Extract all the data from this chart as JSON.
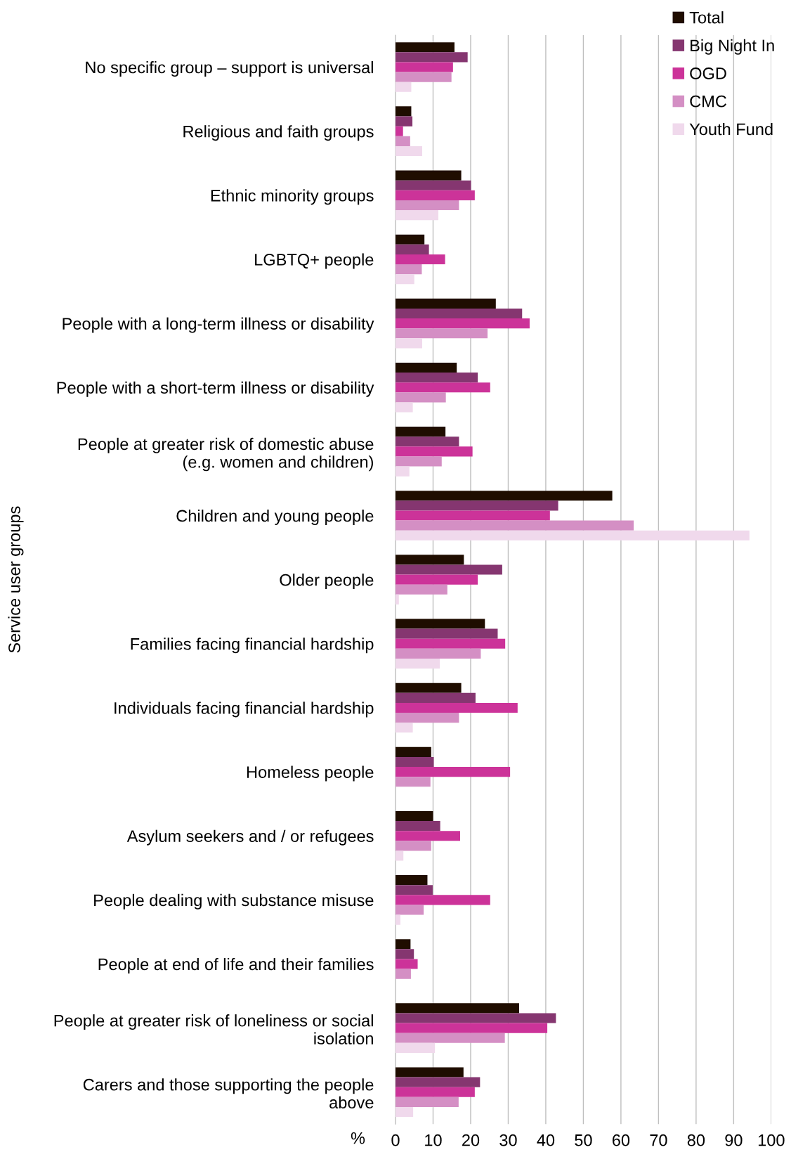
{
  "chart_data": {
    "type": "bar",
    "orientation": "horizontal",
    "xlabel": "%",
    "ylabel": "Service user groups",
    "categories": [
      "No specific group – support is universal",
      "Religious and faith groups",
      "Ethnic minority groups",
      "LGBTQ+ people",
      "People with a long-term illness or disability",
      "People with a short-term illness or disability",
      "People at greater risk of domestic abuse\n(e.g. women and children)",
      "Children and young people",
      "Older people",
      "Families facing financial hardship",
      "Individuals facing financial hardship",
      "Homeless people",
      "Asylum seekers and / or refugees",
      "People dealing with substance misuse",
      "People at end of life and their families",
      "People at greater risk of loneliness or social\nisolation",
      "Carers and those supporting the people\nabove"
    ],
    "series": [
      {
        "name": "Total",
        "color": "#1f0d00",
        "values": [
          15.7,
          4.2,
          17.5,
          7.7,
          26.7,
          16.3,
          13.3,
          57.7,
          18.2,
          23.8,
          17.5,
          9.5,
          10.0,
          8.5,
          4.0,
          32.9,
          18.1
        ]
      },
      {
        "name": "Big Night In",
        "color": "#853670",
        "values": [
          19.2,
          4.5,
          20.1,
          8.9,
          33.7,
          21.9,
          16.9,
          43.3,
          28.4,
          27.2,
          21.3,
          10.2,
          11.9,
          9.9,
          4.9,
          42.7,
          22.5
        ]
      },
      {
        "name": "OGD",
        "color": "#cc3399",
        "values": [
          15.3,
          2.0,
          21.1,
          13.2,
          35.7,
          25.2,
          20.5,
          41.1,
          21.9,
          29.2,
          32.5,
          30.5,
          17.2,
          25.2,
          5.9,
          40.4,
          21.1
        ]
      },
      {
        "name": "CMC",
        "color": "#d48fc4",
        "values": [
          14.9,
          3.9,
          16.9,
          7.0,
          24.5,
          13.4,
          12.3,
          63.4,
          13.8,
          22.7,
          16.9,
          9.3,
          9.5,
          7.5,
          4.1,
          29.1,
          16.8
        ]
      },
      {
        "name": "Youth Fund",
        "color": "#f0d9ec",
        "values": [
          4.2,
          7.1,
          11.4,
          5.0,
          7.1,
          4.6,
          3.7,
          94.2,
          0.9,
          11.8,
          4.6,
          0,
          2.1,
          1.3,
          0,
          10.5,
          4.7
        ]
      }
    ],
    "xlim": [
      0,
      100
    ],
    "xticks": [
      0,
      10,
      20,
      30,
      40,
      50,
      60,
      70,
      80,
      90,
      100
    ],
    "grid": "x",
    "legend": "top right"
  }
}
